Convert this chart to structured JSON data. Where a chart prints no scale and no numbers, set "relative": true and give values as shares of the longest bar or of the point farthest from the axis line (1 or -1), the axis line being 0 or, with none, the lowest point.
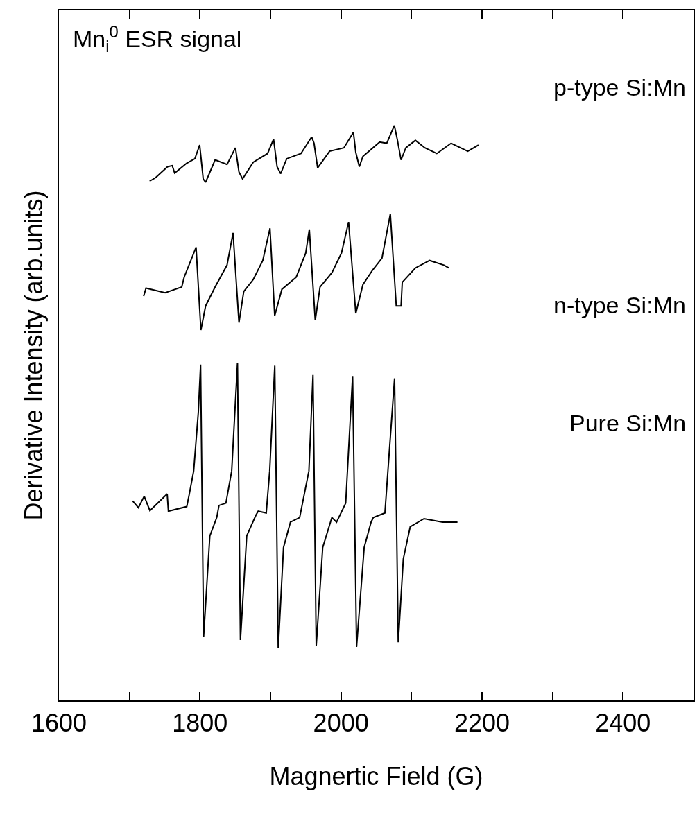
{
  "chart_data": {
    "type": "line",
    "relative": true,
    "xlabel": "Magnertic Field (G)",
    "ylabel": "Derivative Intensity (arb.units)",
    "annotations": [
      "Mn$_{i}$$^{0}$ ESR signal"
    ],
    "xlim": [
      1600,
      2500
    ],
    "xticks": [
      1600,
      {
        "value": 1700,
        "label": null
      },
      1800,
      {
        "value": 1900,
        "label": null
      },
      2000,
      {
        "value": 2100,
        "label": null
      },
      2200,
      {
        "value": 2300,
        "label": null
      },
      2400
    ],
    "legend": false,
    "marker": "none",
    "line_style": "solid",
    "series": [
      {
        "name": "p-type Si:Mn",
        "color": "#000000",
        "x": [
          1728.6,
          1737.0,
          1754.0,
          1760.7,
          1764.1,
          1781.0,
          1792.8,
          1799.6,
          1804.6,
          1808.0,
          1821.5,
          1838.4,
          1850.3,
          1855.3,
          1860.4,
          1875.6,
          1895.9,
          1904.4,
          1909.4,
          1914.5,
          1923.0,
          1943.2,
          1958.4,
          1961.8,
          1966.9,
          1983.8,
          2004.1,
          2017.6,
          2021.0,
          2026.0,
          2031.1,
          2054.8,
          2064.9,
          2075.7,
          2080.1,
          2085.2,
          2092.0,
          2105.5,
          2119.0,
          2135.9,
          2156.2,
          2179.8,
          2195.0
        ],
        "values": [
          0.903,
          0.909,
          0.928,
          0.93,
          0.917,
          0.934,
          0.942,
          0.966,
          0.907,
          0.901,
          0.94,
          0.932,
          0.961,
          0.919,
          0.907,
          0.936,
          0.951,
          0.976,
          0.928,
          0.916,
          0.942,
          0.951,
          0.98,
          0.969,
          0.926,
          0.955,
          0.961,
          0.988,
          0.953,
          0.928,
          0.946,
          0.971,
          0.969,
          1.0,
          0.974,
          0.94,
          0.961,
          0.974,
          0.961,
          0.951,
          0.969,
          0.955,
          0.966
        ]
      },
      {
        "name": "n-type Si:Mn",
        "color": "#000000",
        "x": [
          1720.1,
          1723.5,
          1750.6,
          1774.2,
          1777.6,
          1794.5,
          1801.3,
          1808.0,
          1821.5,
          1838.4,
          1846.9,
          1855.3,
          1862.1,
          1875.6,
          1889.1,
          1899.3,
          1906.0,
          1916.2,
          1936.5,
          1950.0,
          1955.1,
          1963.5,
          1970.3,
          1987.2,
          2000.7,
          2010.8,
          2021.0,
          2031.1,
          2044.6,
          2058.1,
          2070.0,
          2078.4,
          2085.2,
          2086.9,
          2105.5,
          2125.7,
          2146.0,
          2152.8
        ],
        "values": [
          0.703,
          0.717,
          0.709,
          0.719,
          0.736,
          0.788,
          0.644,
          0.686,
          0.719,
          0.757,
          0.813,
          0.657,
          0.711,
          0.732,
          0.765,
          0.821,
          0.669,
          0.715,
          0.736,
          0.778,
          0.819,
          0.661,
          0.719,
          0.744,
          0.778,
          0.832,
          0.673,
          0.723,
          0.748,
          0.769,
          0.846,
          0.686,
          0.686,
          0.727,
          0.752,
          0.765,
          0.757,
          0.752
        ]
      },
      {
        "name": "Pure Si:Mn",
        "color": "#000000",
        "x": [
          1704.5,
          1712.7,
          1720.9,
          1729.0,
          1753.5,
          1755.2,
          1781.3,
          1784.6,
          1791.1,
          1797.6,
          1800.9,
          1805.2,
          1814.0,
          1823.8,
          1827.0,
          1836.8,
          1845.0,
          1853.2,
          1857.4,
          1866.3,
          1879.3,
          1882.6,
          1894.0,
          1898.9,
          1906.1,
          1911.0,
          1918.5,
          1928.3,
          1941.4,
          1954.5,
          1960.3,
          1964.9,
          1974.1,
          1987.1,
          1993.7,
          2006.7,
          2016.5,
          2022.1,
          2032.9,
          2042.7,
          2045.9,
          2062.3,
          2076.0,
          2081.2,
          2088.4,
          2098.2,
          2117.8,
          2144.0,
          2165.2
        ],
        "values": [
          0.347,
          0.335,
          0.355,
          0.33,
          0.359,
          0.329,
          0.337,
          0.357,
          0.399,
          0.5,
          0.584,
          0.111,
          0.286,
          0.318,
          0.339,
          0.343,
          0.399,
          0.586,
          0.105,
          0.286,
          0.322,
          0.329,
          0.326,
          0.399,
          0.582,
          0.091,
          0.266,
          0.31,
          0.318,
          0.399,
          0.566,
          0.095,
          0.266,
          0.318,
          0.31,
          0.343,
          0.564,
          0.093,
          0.266,
          0.31,
          0.318,
          0.326,
          0.56,
          0.101,
          0.246,
          0.302,
          0.316,
          0.31,
          0.31
        ]
      }
    ]
  }
}
